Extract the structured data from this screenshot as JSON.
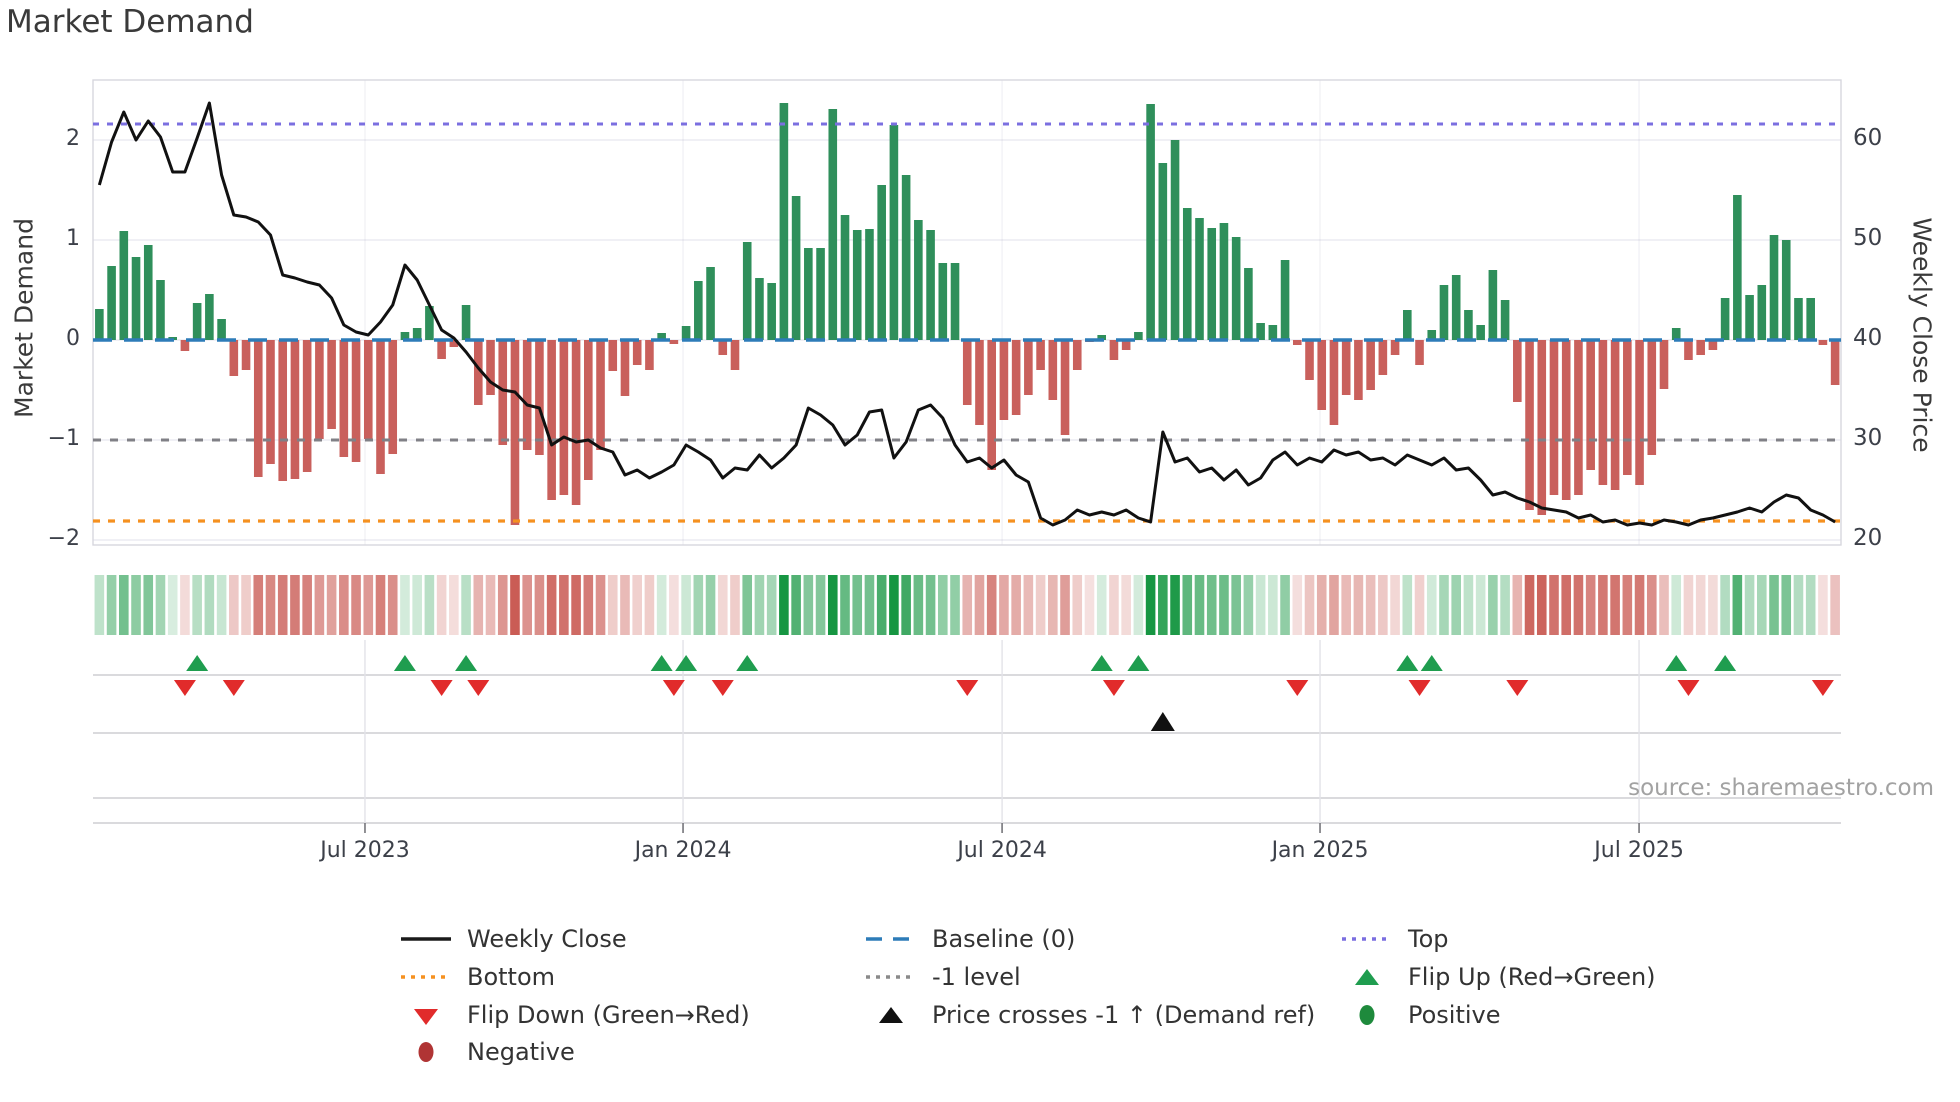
{
  "title": "Market Demand",
  "source": "source: sharemaestro.com",
  "chart_data": {
    "type": "combo",
    "subtypes": [
      "bar",
      "line",
      "heatmap",
      "event-markers"
    ],
    "title": "Market Demand",
    "left_axis": {
      "title": "Market Demand",
      "range": [
        -2.05,
        2.6
      ],
      "ticks": [
        {
          "label": "2",
          "value": 2
        },
        {
          "label": "1",
          "value": 1
        },
        {
          "label": "0",
          "value": 0
        },
        {
          "label": "−1",
          "value": -1
        },
        {
          "label": "−2",
          "value": -2
        }
      ]
    },
    "right_axis": {
      "title": "Weekly Close Price",
      "range": [
        19.5,
        66
      ],
      "ticks": [
        {
          "label": "60",
          "value": 60
        },
        {
          "label": "50",
          "value": 50
        },
        {
          "label": "40",
          "value": 40
        },
        {
          "label": "30",
          "value": 30
        },
        {
          "label": "20",
          "value": 20
        }
      ]
    },
    "x_axis": {
      "ticks": [
        {
          "label": "Jul 2023",
          "week": 21.73
        },
        {
          "label": "Jan 2024",
          "week": 47.75
        },
        {
          "label": "Jul 2024",
          "week": 73.85
        },
        {
          "label": "Jan 2025",
          "week": 99.86
        },
        {
          "label": "Jul 2025",
          "week": 125.96
        }
      ]
    },
    "levels": {
      "top": {
        "label": "Top",
        "value": 2.16,
        "color": "#7b6fe0",
        "style": "dotted"
      },
      "baseline": {
        "label": "Baseline (0)",
        "value": 0,
        "color": "#2d7cb8",
        "style": "dashed"
      },
      "minus_one": {
        "label": "-1 level",
        "value": -1,
        "color": "#808086",
        "style": "dotted"
      },
      "bottom": {
        "label": "Bottom",
        "value": -1.81,
        "color": "#f59120",
        "style": "dotted"
      }
    },
    "series": [
      {
        "name": "Market Demand bars",
        "type": "bar",
        "axis": "left",
        "color_positive": "#2f8f5b",
        "color_negative": "#c9605c"
      },
      {
        "name": "Weekly Close",
        "type": "line",
        "axis": "right",
        "color": "#111111"
      }
    ],
    "demand": [
      0.31,
      0.74,
      1.09,
      0.83,
      0.95,
      0.6,
      0.03,
      -0.11,
      0.37,
      0.46,
      0.21,
      -0.36,
      -0.3,
      -1.37,
      -1.24,
      -1.41,
      -1.39,
      -1.32,
      -0.99,
      -0.89,
      -1.17,
      -1.22,
      -0.99,
      -1.34,
      -1.14,
      0.08,
      0.12,
      0.34,
      -0.19,
      -0.07,
      0.35,
      -0.65,
      -0.55,
      -1.05,
      -1.85,
      -1.1,
      -1.15,
      -1.6,
      -1.55,
      -1.65,
      -1.4,
      -1.1,
      -0.31,
      -0.56,
      -0.25,
      -0.3,
      0.07,
      -0.04,
      0.14,
      0.59,
      0.73,
      -0.15,
      -0.3,
      0.98,
      0.62,
      0.57,
      2.37,
      1.44,
      0.92,
      0.92,
      2.31,
      1.25,
      1.1,
      1.11,
      1.55,
      2.15,
      1.65,
      1.2,
      1.1,
      0.77,
      0.77,
      -0.65,
      -0.85,
      -1.3,
      -0.8,
      -0.75,
      -0.55,
      -0.3,
      -0.6,
      -0.95,
      -0.3,
      -0.02,
      0.05,
      -0.2,
      -0.1,
      0.08,
      2.36,
      1.77,
      2.0,
      1.32,
      1.22,
      1.12,
      1.17,
      1.03,
      0.72,
      0.17,
      0.15,
      0.8,
      -0.05,
      -0.4,
      -0.7,
      -0.85,
      -0.55,
      -0.6,
      -0.5,
      -0.35,
      -0.15,
      0.3,
      -0.25,
      0.1,
      0.55,
      0.65,
      0.3,
      0.15,
      0.7,
      0.4,
      -0.62,
      -1.7,
      -1.75,
      -1.55,
      -1.6,
      -1.55,
      -1.3,
      -1.45,
      -1.5,
      -1.35,
      -1.45,
      -1.15,
      -0.49,
      0.12,
      -0.2,
      -0.15,
      -0.1,
      0.42,
      1.45,
      0.45,
      0.55,
      1.05,
      1.0,
      0.42,
      0.42,
      -0.05,
      -0.45
    ],
    "price": [
      55.5,
      59.8,
      62.8,
      60.0,
      61.9,
      60.3,
      56.8,
      56.8,
      60.2,
      63.7,
      56.5,
      52.5,
      52.3,
      51.8,
      50.5,
      46.5,
      46.2,
      45.8,
      45.5,
      44.2,
      41.5,
      40.8,
      40.5,
      41.8,
      43.5,
      47.5,
      46.0,
      43.5,
      41.0,
      40.2,
      38.8,
      37.2,
      35.8,
      35.0,
      34.8,
      33.5,
      33.2,
      29.5,
      30.3,
      29.8,
      30.0,
      29.2,
      28.8,
      26.5,
      27.0,
      26.2,
      26.8,
      27.5,
      29.5,
      28.8,
      28.0,
      26.2,
      27.2,
      27.0,
      28.5,
      27.2,
      28.2,
      29.5,
      33.2,
      32.5,
      31.5,
      29.5,
      30.5,
      32.8,
      33.0,
      28.2,
      29.8,
      33.0,
      33.5,
      32.2,
      29.5,
      27.8,
      28.2,
      27.2,
      28.0,
      26.5,
      25.8,
      22.2,
      21.5,
      22.0,
      23.0,
      22.5,
      22.8,
      22.5,
      23.0,
      22.2,
      21.8,
      30.8,
      27.8,
      28.2,
      26.8,
      27.2,
      26.0,
      27.0,
      25.5,
      26.2,
      28.0,
      28.8,
      27.5,
      28.2,
      27.8,
      29.0,
      28.5,
      28.8,
      28.0,
      28.2,
      27.5,
      28.5,
      28.0,
      27.5,
      28.2,
      27.0,
      27.2,
      26.0,
      24.5,
      24.8,
      24.2,
      23.8,
      23.2,
      23.0,
      22.8,
      22.2,
      22.5,
      21.8,
      22.0,
      21.5,
      21.7,
      21.5,
      22.0,
      21.8,
      21.5,
      22.0,
      22.2,
      22.5,
      22.8,
      23.2,
      22.8,
      23.8,
      24.5,
      24.2,
      23.0,
      22.5,
      21.8
    ],
    "heatmap": {
      "description": "weekly demand sign/strength strip",
      "color_positive": "#169642",
      "color_negative": "#c44a42"
    },
    "flip_up_weeks": [
      8,
      25,
      30,
      46,
      48,
      53,
      82,
      85,
      107,
      109,
      129,
      133
    ],
    "flip_down_weeks": [
      7,
      11,
      28,
      31,
      47,
      51,
      71,
      83,
      98,
      108,
      116,
      130,
      141
    ],
    "price_cross_weeks": [
      87
    ]
  },
  "colors": {
    "bar_positive": "#2f8f5b",
    "bar_negative": "#c9605c",
    "price_line": "#111111",
    "baseline": "#2d7cb8",
    "top_line": "#7b6fe0",
    "bottom_line": "#f59120",
    "minus_one_line": "#808086",
    "flip_up": "#1f9d4f",
    "flip_down": "#e12b2b",
    "price_cross": "#111111",
    "positive_dot": "#1e8a3c",
    "negative_dot": "#b03434",
    "grid": "#ebebf2"
  },
  "legend": {
    "columns": [
      {
        "items": [
          {
            "marker": "solid-line-icon",
            "color": "#1a1a1a",
            "label": "Weekly Close"
          },
          {
            "marker": "dotted-line-icon",
            "color": "#f59120",
            "label": "Bottom"
          },
          {
            "marker": "triangle-down-icon",
            "color": "#e12b2b",
            "label": "Flip Down (Green→Red)"
          },
          {
            "marker": "ellipse-icon",
            "color": "#b03434",
            "label": "Negative"
          }
        ]
      },
      {
        "items": [
          {
            "marker": "dashed-line-icon",
            "color": "#2d7cb8",
            "label": "Baseline (0)"
          },
          {
            "marker": "dotted-line-icon",
            "color": "#8a8a8a",
            "label": "-1 level"
          },
          {
            "marker": "triangle-up-icon",
            "color": "#111111",
            "label": "Price crosses -1 ↑ (Demand ref)"
          }
        ]
      },
      {
        "items": [
          {
            "marker": "dotted-line-icon",
            "color": "#7b6fe0",
            "label": "Top"
          },
          {
            "marker": "triangle-up-icon",
            "color": "#1f9d4f",
            "label": "Flip Up (Red→Green)"
          },
          {
            "marker": "ellipse-icon",
            "color": "#1e8a3c",
            "label": "Positive"
          }
        ]
      }
    ]
  }
}
